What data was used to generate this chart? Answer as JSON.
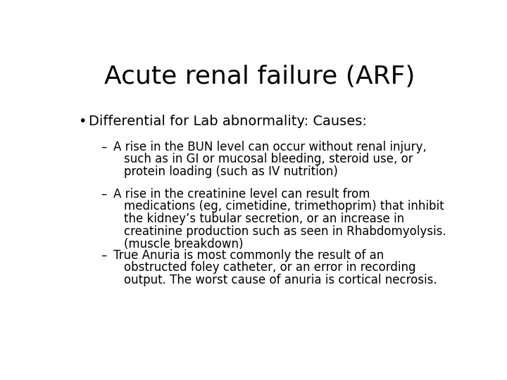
{
  "title": "Acute renal failure (ARF)",
  "title_fontsize": 26,
  "background_color": "#ffffff",
  "text_color": "#000000",
  "bullet_text": "Differential for Lab abnormality: Causes:",
  "bullet_fontsize": 14,
  "sub_bullet_fontsize": 12,
  "sub_bullets": [
    [
      "A rise in the BUN level can occur without renal injury,",
      "such as in GI or mucosal bleeding, steroid use, or",
      "protein loading (such as IV nutrition)"
    ],
    [
      "A rise in the creatinine level can result from",
      "medications (eg, cimetidine, trimethoprim) that inhibit",
      "the kidney’s tubular secretion, or an increase in",
      "creatinine production such as seen in Rhabdomyolysis.",
      "(muscle breakdown)"
    ],
    [
      "True Anuria is most commonly the result of an",
      "obstructed foley catheter, or an error in recording",
      "output. The worst cause of anuria is cortical necrosis."
    ]
  ],
  "font_family": "DejaVu Sans Condensed"
}
